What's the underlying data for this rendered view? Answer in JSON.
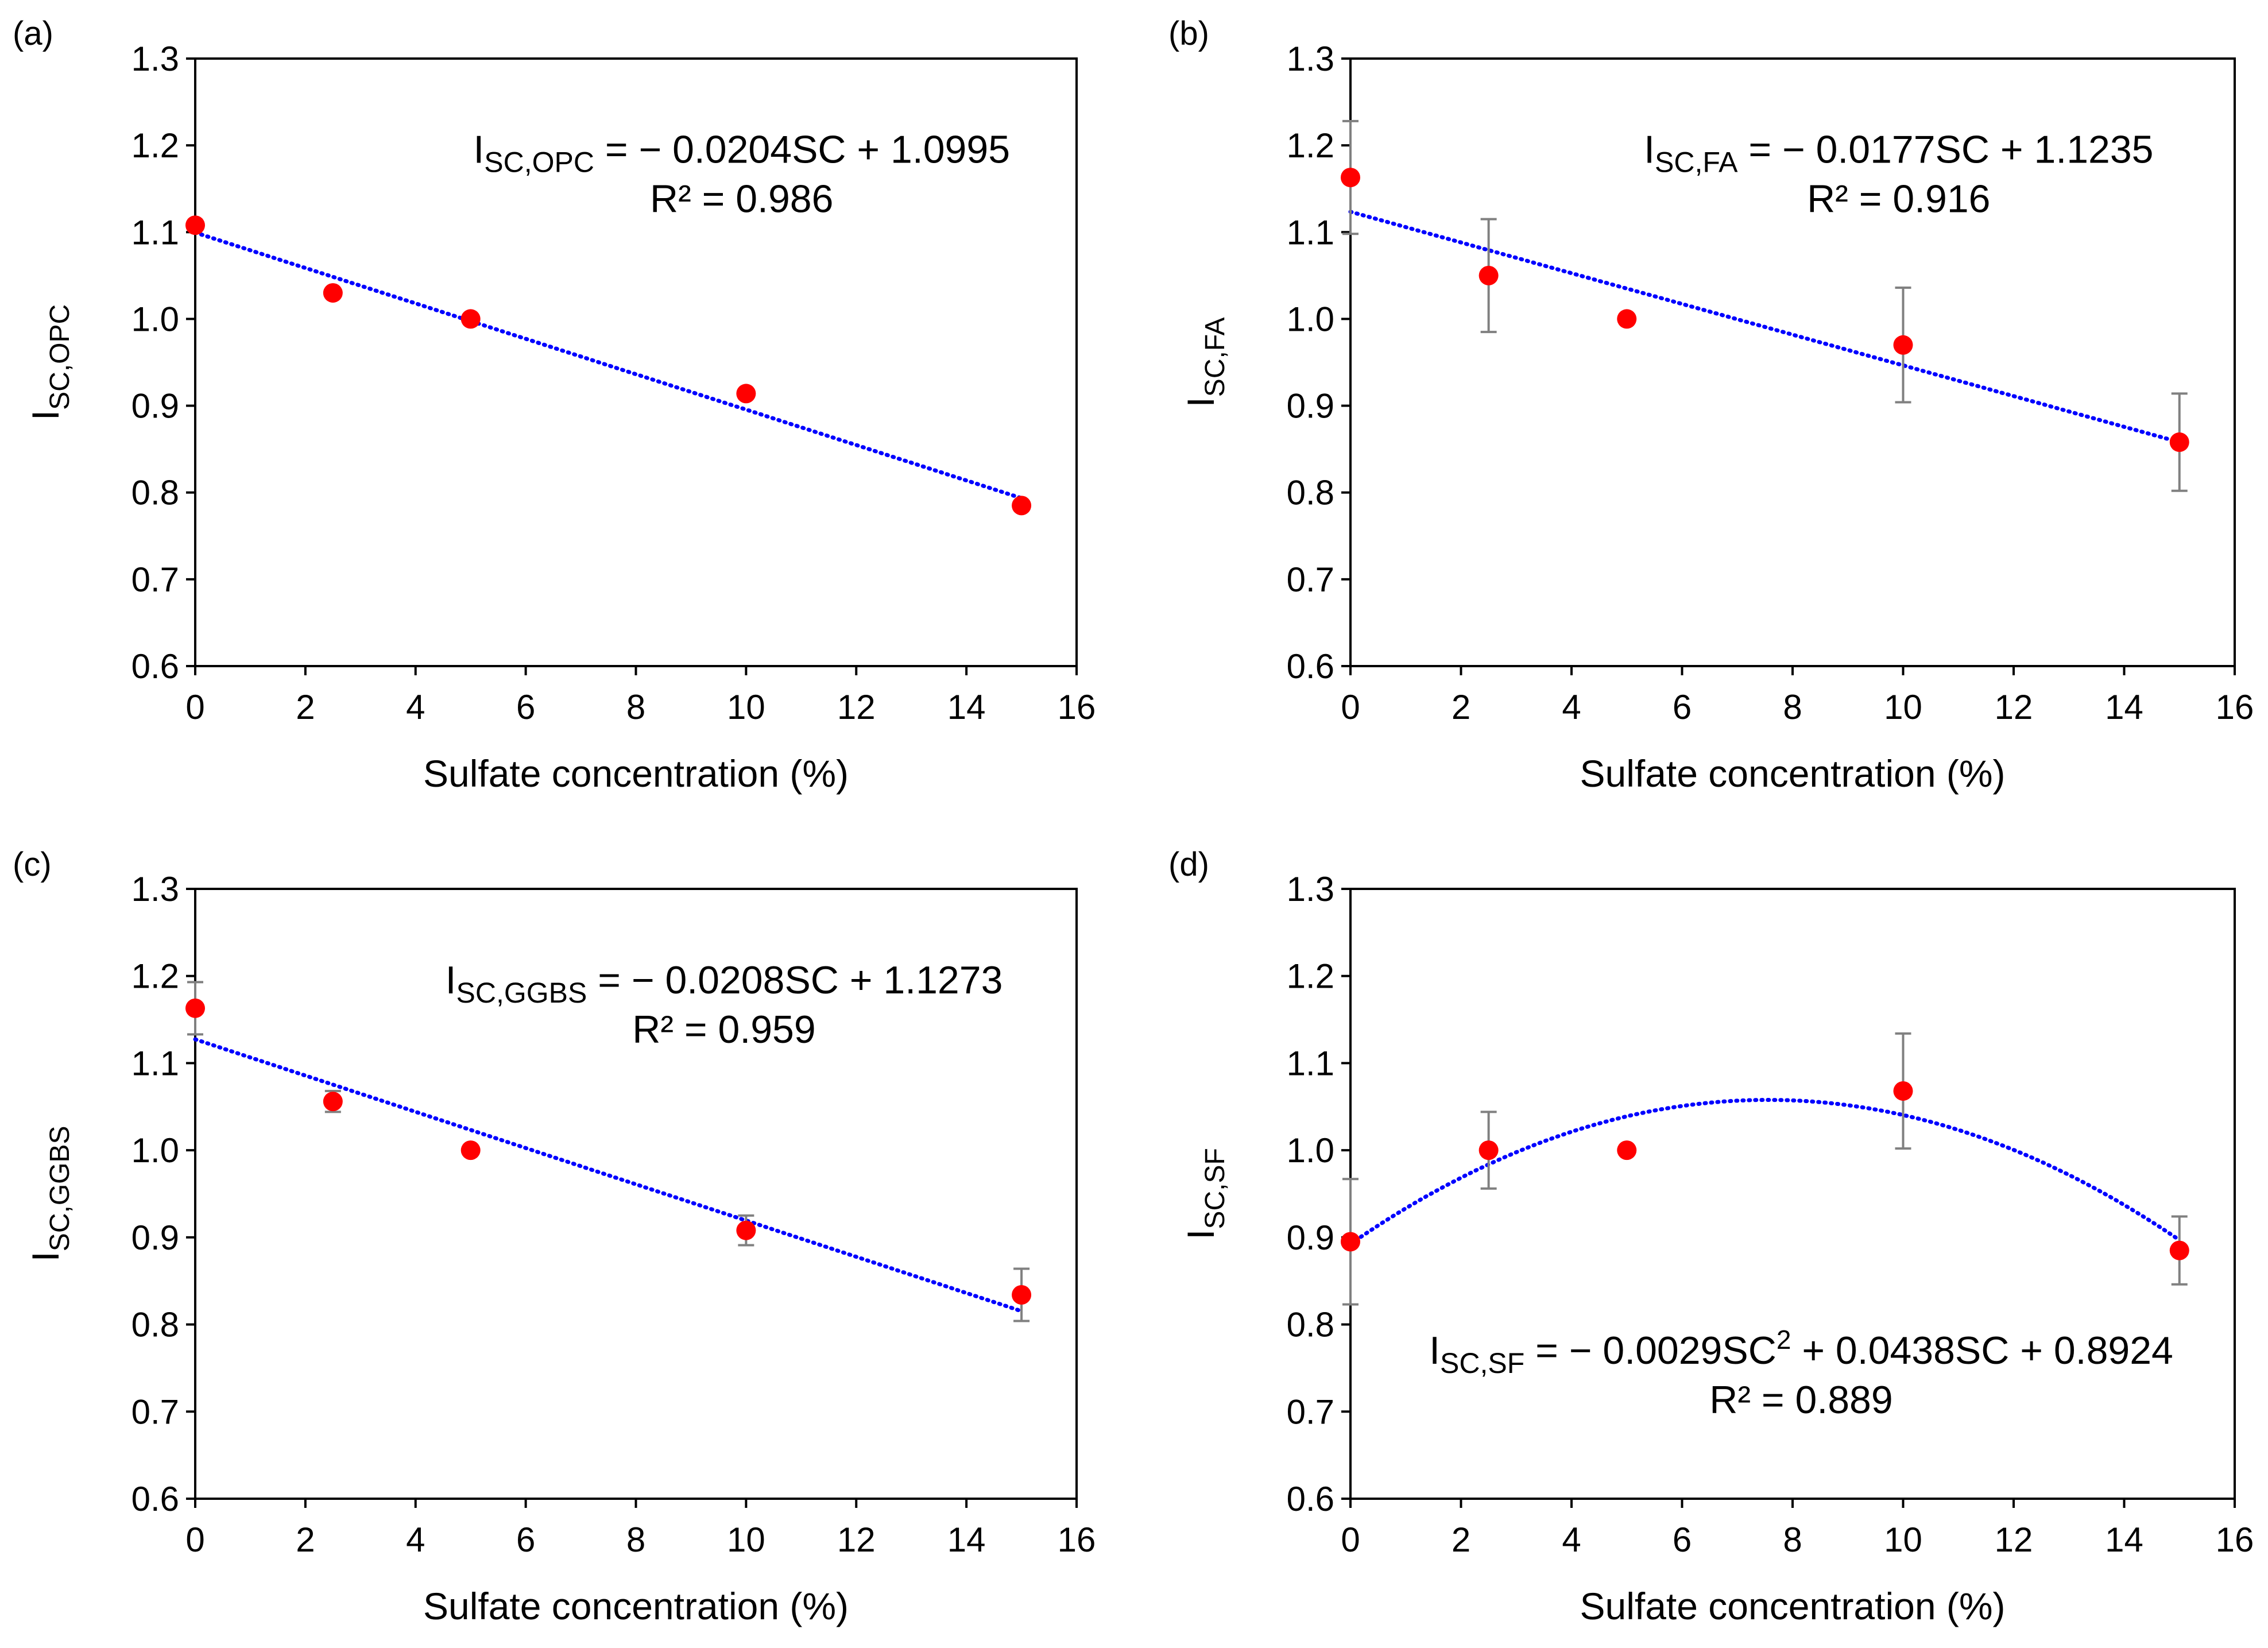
{
  "figure": {
    "description_text": "",
    "x_tick_labels": [
      "0",
      "2",
      "4",
      "6",
      "8",
      "10",
      "12",
      "14",
      "16"
    ],
    "y_tick_labels": [
      "0.6",
      "0.7",
      "0.8",
      "0.9",
      "1.0",
      "1.1",
      "1.2",
      "1.3"
    ]
  },
  "colors": {
    "marker": "#ff0000",
    "trendline": "#0000ff",
    "error_bar": "#808080",
    "axis": "#000000"
  },
  "chart_data": [
    {
      "panel": "(a)",
      "type": "scatter",
      "xlabel": "Sulfate concentration (%)",
      "ylabel": {
        "main": "I",
        "sub": "SC,OPC"
      },
      "xlim": [
        0,
        16
      ],
      "ylim": [
        0.6,
        1.3
      ],
      "x": [
        0,
        2.5,
        5,
        10,
        15
      ],
      "y": [
        1.108,
        1.03,
        1.0,
        0.914,
        0.785
      ],
      "error": [
        0,
        0,
        0,
        0,
        0
      ],
      "trend": {
        "kind": "linear",
        "coef": [
          1.0995,
          -0.0204
        ]
      },
      "equation": {
        "lhs": "I",
        "sub": "SC,OPC",
        "rhs": " = − 0.0204SC + 1.0995",
        "r2": "R² = 0.986",
        "pos": "top-right"
      }
    },
    {
      "panel": "(b)",
      "type": "scatter",
      "xlabel": "Sulfate concentration (%)",
      "ylabel": {
        "main": "I",
        "sub": "SC,FA"
      },
      "xlim": [
        0,
        16
      ],
      "ylim": [
        0.6,
        1.3
      ],
      "x": [
        0,
        2.5,
        5,
        10,
        15
      ],
      "y": [
        1.163,
        1.05,
        1.0,
        0.97,
        0.858
      ],
      "error": [
        0.065,
        0.065,
        0,
        0.066,
        0.056
      ],
      "trend": {
        "kind": "linear",
        "coef": [
          1.1235,
          -0.0177
        ]
      },
      "equation": {
        "lhs": "I",
        "sub": "SC,FA",
        "rhs": " = − 0.0177SC + 1.1235",
        "r2": "R² = 0.916",
        "pos": "top-right"
      }
    },
    {
      "panel": "(c)",
      "type": "scatter",
      "xlabel": "Sulfate concentration (%)",
      "ylabel": {
        "main": "I",
        "sub": "SC,GGBS"
      },
      "xlim": [
        0,
        16
      ],
      "ylim": [
        0.6,
        1.3
      ],
      "x": [
        0,
        2.5,
        5,
        10,
        15
      ],
      "y": [
        1.163,
        1.056,
        1.0,
        0.908,
        0.834
      ],
      "error": [
        0.03,
        0.012,
        0,
        0.017,
        0.03
      ],
      "trend": {
        "kind": "linear",
        "coef": [
          1.1273,
          -0.0208
        ]
      },
      "equation": {
        "lhs": "I",
        "sub": "SC,GGBS",
        "rhs": " = − 0.0208SC + 1.1273",
        "r2": "R² = 0.959",
        "pos": "top-right"
      }
    },
    {
      "panel": "(d)",
      "type": "scatter",
      "xlabel": "Sulfate concentration (%)",
      "ylabel": {
        "main": "I",
        "sub": "SC,SF"
      },
      "xlim": [
        0,
        16
      ],
      "ylim": [
        0.6,
        1.3
      ],
      "x": [
        0,
        2.5,
        5,
        10,
        15
      ],
      "y": [
        0.895,
        1.0,
        1.0,
        1.068,
        0.885
      ],
      "error": [
        0.072,
        0.044,
        0,
        0.066,
        0.039
      ],
      "trend": {
        "kind": "quadratic",
        "coef": [
          0.8924,
          0.0438,
          -0.0029
        ]
      },
      "equation": {
        "lhs": "I",
        "sub": "SC,SF",
        "rhs_a": " = − 0.0029SC",
        "sup": "2",
        "rhs_b": " + 0.0438SC + 0.8924",
        "r2": "R² = 0.889",
        "pos": "bottom"
      }
    }
  ]
}
